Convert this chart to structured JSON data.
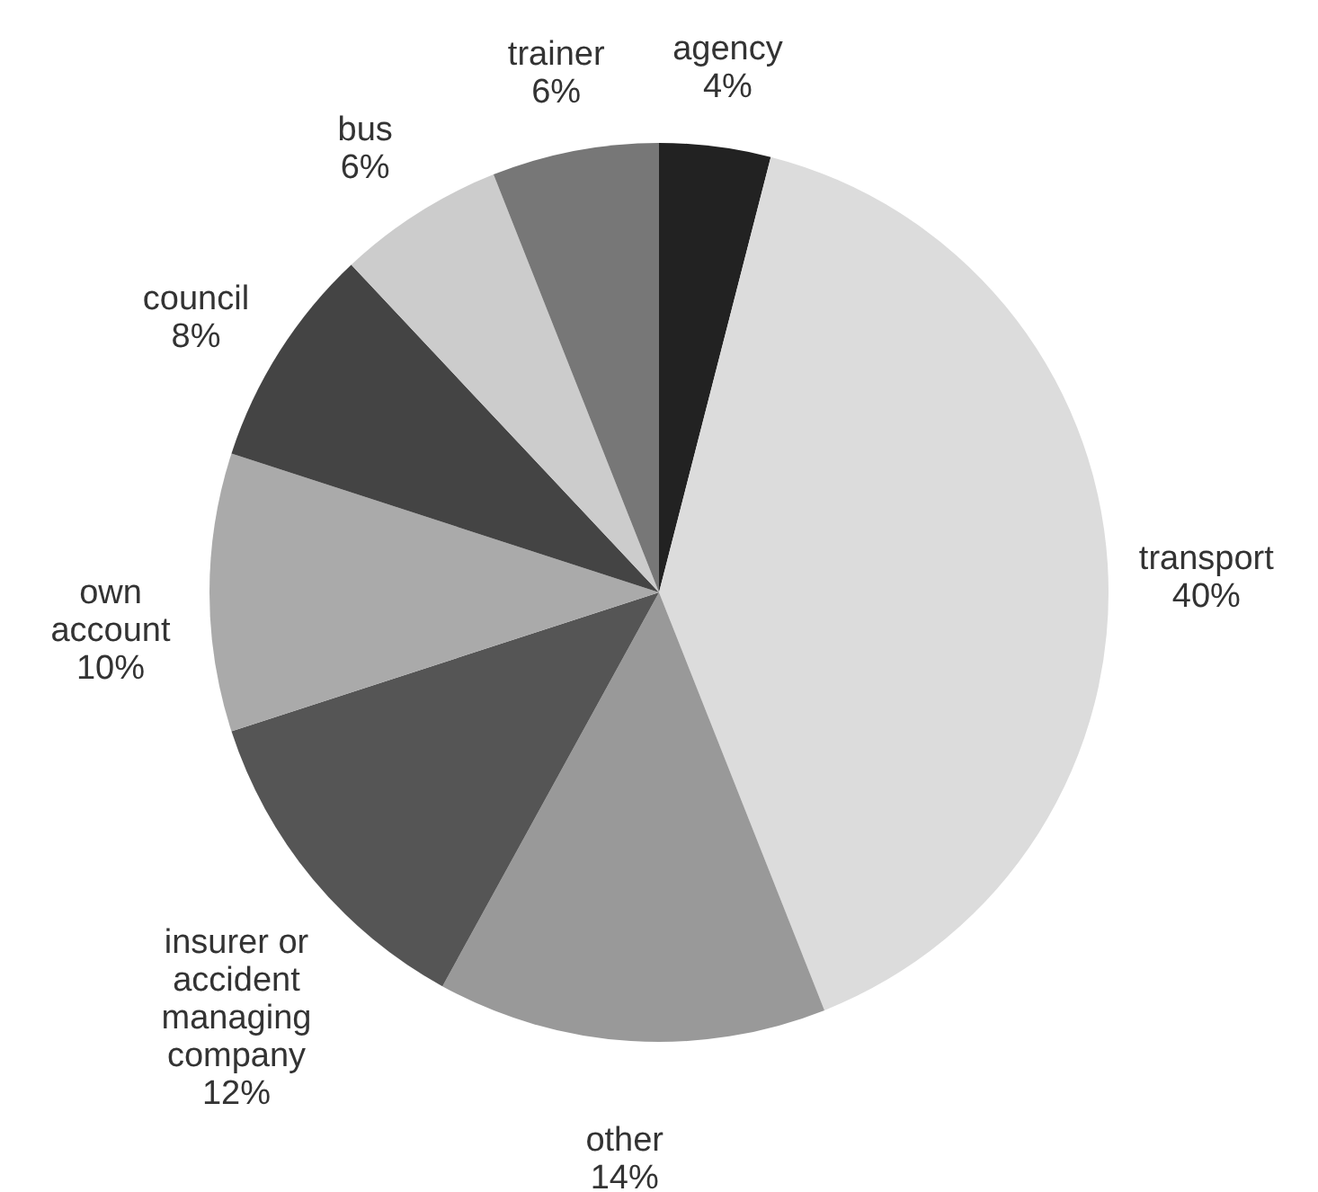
{
  "chart_data": {
    "type": "pie",
    "categories": [
      "agency",
      "transport",
      "other",
      "insurer or accident managing company",
      "own account",
      "council",
      "bus",
      "trainer"
    ],
    "values": [
      4,
      40,
      14,
      12,
      10,
      8,
      6,
      6
    ],
    "value_labels": [
      "4%",
      "40%",
      "14%",
      "12%",
      "10%",
      "8%",
      "6%",
      "6%"
    ],
    "colors": [
      "#222222",
      "#dcdcdc",
      "#999999",
      "#555555",
      "#aaaaaa",
      "#444444",
      "#cccccc",
      "#777777"
    ],
    "legend": false
  }
}
